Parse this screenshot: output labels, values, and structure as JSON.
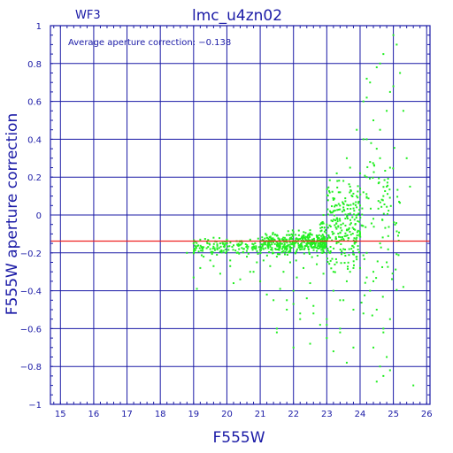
{
  "chart_data": {
    "type": "scatter",
    "title": "lmc_u4zn02",
    "subtitle": "WF3",
    "annotation": "Average aperture correction: −0.138",
    "xlabel": "F555W",
    "ylabel": "F555W aperture correction",
    "xlim": [
      14.7,
      26.1
    ],
    "ylim": [
      -1,
      1
    ],
    "x_ticks": [
      15,
      16,
      17,
      18,
      19,
      20,
      21,
      22,
      23,
      24,
      25,
      26
    ],
    "y_ticks": [
      -1,
      -0.8,
      -0.6,
      -0.4,
      -0.2,
      0,
      0.2,
      0.4,
      0.6,
      0.8,
      1
    ],
    "y_tick_labels": [
      "−1",
      "−0.8",
      "−0.6",
      "−0.4",
      "−0.2",
      "0",
      "0.2",
      "0.4",
      "0.6",
      "0.8",
      "1"
    ],
    "average_line": -0.138,
    "grid": true,
    "colors": {
      "axis": "#1a1aa6",
      "grid": "#1a1aa6",
      "points": "#22ee22",
      "average_line": "#ee2222"
    },
    "series": [
      {
        "x": [
          18.8,
          19.0,
          19.1,
          19.2,
          19.3,
          19.3,
          19.4,
          19.5,
          19.6,
          19.7,
          19.8,
          19.9,
          20.0,
          20.1,
          20.2,
          20.3,
          20.4,
          20.5,
          20.6,
          20.7,
          20.8,
          20.9,
          19.2,
          19.5,
          19.8,
          20.1,
          20.4,
          20.7,
          21.0,
          21.1,
          21.2,
          21.3,
          21.4,
          21.5,
          21.6,
          21.7,
          21.8,
          21.9,
          22.0,
          22.1,
          22.2,
          22.3,
          22.4,
          22.5,
          22.6,
          22.7,
          22.8,
          22.9,
          21.1,
          21.3,
          21.5,
          21.7,
          21.9,
          22.1,
          22.3,
          22.5,
          22.7,
          22.9,
          21.2,
          21.4,
          21.6,
          21.8,
          22.0,
          22.2,
          22.4,
          22.6,
          22.8,
          21.0,
          21.5,
          22.0,
          22.5,
          23.0,
          23.0,
          23.1,
          23.2,
          23.3,
          23.4,
          23.5,
          23.6,
          23.7,
          23.8,
          23.9,
          23.1,
          23.3,
          23.5,
          23.7,
          23.9,
          23.2,
          23.4,
          23.6,
          23.8,
          23.0,
          23.2,
          23.4,
          23.6,
          23.8,
          24.0,
          24.1,
          24.2,
          24.3,
          24.4,
          24.5,
          24.6,
          24.7,
          24.8,
          24.9,
          24.1,
          24.3,
          24.5,
          24.7,
          24.9,
          24.2,
          24.4,
          24.6,
          24.8,
          24.0,
          24.2,
          24.4,
          24.6,
          24.8,
          25.0,
          25.1,
          25.2,
          25.3,
          25.4,
          25.5,
          24.3,
          24.5,
          24.7,
          24.9,
          24.4,
          24.6,
          24.8,
          24.5,
          24.7,
          23.5,
          23.7,
          23.9,
          24.1,
          23.3,
          23.6,
          23.9,
          24.2,
          22.5,
          22.8,
          23.1,
          21.8,
          22.2,
          22.6,
          23.0,
          23.4,
          21.5,
          22.0,
          19.0,
          19.6,
          20.2,
          20.8,
          24.2,
          24.6,
          25.0,
          24.9,
          25.3,
          25.6,
          23.2,
          23.5,
          23.8,
          24.1,
          24.4,
          24.7,
          22.9,
          23.3,
          23.7,
          24.0
        ],
        "y": [
          -0.2,
          -0.15,
          -0.39,
          -0.13,
          -0.17,
          -0.22,
          -0.14,
          -0.18,
          -0.12,
          -0.21,
          -0.15,
          -0.19,
          -0.13,
          -0.24,
          -0.16,
          -0.2,
          -0.14,
          -0.18,
          -0.22,
          -0.13,
          -0.17,
          -0.25,
          -0.28,
          -0.24,
          -0.31,
          -0.27,
          -0.34,
          -0.3,
          -0.14,
          -0.18,
          -0.12,
          -0.16,
          -0.2,
          -0.11,
          -0.15,
          -0.19,
          -0.13,
          -0.17,
          -0.09,
          -0.14,
          -0.18,
          -0.12,
          -0.16,
          -0.1,
          -0.15,
          -0.19,
          -0.13,
          -0.17,
          -0.24,
          -0.27,
          -0.22,
          -0.3,
          -0.25,
          -0.33,
          -0.28,
          -0.36,
          -0.26,
          -0.31,
          -0.42,
          -0.45,
          -0.39,
          -0.5,
          -0.47,
          -0.55,
          -0.44,
          -0.52,
          -0.58,
          -0.35,
          -0.62,
          -0.4,
          -0.68,
          -0.55,
          -0.05,
          0.02,
          0.08,
          -0.02,
          0.12,
          0.04,
          -0.08,
          0.15,
          0.06,
          -0.12,
          -0.2,
          -0.25,
          -0.18,
          -0.3,
          -0.22,
          -0.4,
          -0.45,
          -0.35,
          -0.5,
          -0.65,
          -0.72,
          -0.6,
          -0.78,
          -0.7,
          0.05,
          0.12,
          0.2,
          0.28,
          -0.02,
          0.35,
          0.45,
          0.1,
          0.55,
          0.25,
          0.6,
          0.7,
          0.78,
          0.85,
          0.65,
          0.4,
          0.5,
          0.3,
          0.15,
          -0.1,
          -0.2,
          -0.3,
          -0.15,
          -0.25,
          0.95,
          0.9,
          0.75,
          0.55,
          0.3,
          0.15,
          -0.4,
          -0.5,
          -0.6,
          -0.55,
          -0.7,
          -0.8,
          -0.75,
          -0.88,
          -0.85,
          0.18,
          0.25,
          0.1,
          0.4,
          0.22,
          0.3,
          0.45,
          0.62,
          -0.08,
          -0.05,
          -0.12,
          -0.45,
          -0.52,
          -0.48,
          -0.58,
          -0.62,
          -0.6,
          -0.7,
          -0.33,
          -0.27,
          -0.36,
          -0.3,
          0.72,
          0.8,
          0.68,
          -0.82,
          -0.38,
          -0.9,
          -0.3,
          -0.45,
          -0.28,
          -0.52,
          -0.35,
          -0.62,
          0.0,
          0.05,
          -0.05,
          0.22
        ]
      }
    ]
  }
}
